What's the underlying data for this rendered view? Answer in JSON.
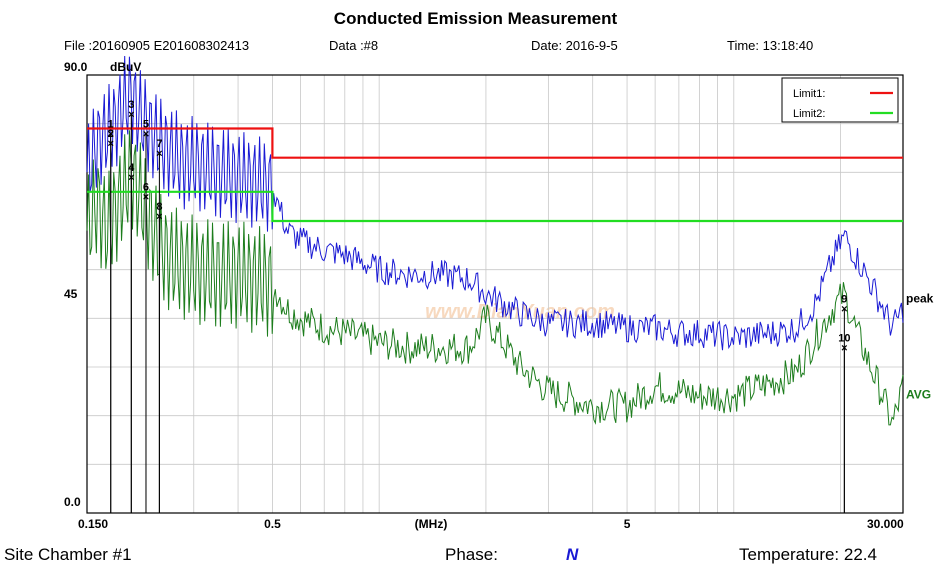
{
  "header": {
    "title": "Conducted Emission Measurement",
    "file": "File :20160905 E201608302413",
    "data_label": "Data :#8",
    "date": "Date: 2016-9-5",
    "time": "Time: 13:18:40"
  },
  "footer": {
    "site": "Site  Chamber #1",
    "phase_label": "Phase:",
    "phase_value": "N",
    "temperature": "Temperature:  22.4"
  },
  "watermark": "www.DianYuan.com",
  "colors": {
    "limit1": "#ee1111",
    "limit2": "#22dd22",
    "peak": "#1a1ad4",
    "avg": "#1d7d1d",
    "grid": "#c8c8c8"
  },
  "chart_data": {
    "type": "line",
    "title": "Conducted Emission Measurement",
    "xlabel": "(MHz)",
    "ylabel": "dBuV",
    "xscale": "log",
    "xlim": [
      0.15,
      30
    ],
    "ylim": [
      0,
      90
    ],
    "x_tick_labels": [
      {
        "value": 0.15,
        "label": "0.150"
      },
      {
        "value": 0.5,
        "label": "0.5"
      },
      {
        "value": 1.4,
        "label": "(MHz)"
      },
      {
        "value": 5,
        "label": "5"
      },
      {
        "value": 30,
        "label": "30.000"
      }
    ],
    "y_tick_labels": [
      {
        "value": 90,
        "label": "90.0"
      },
      {
        "value": 45,
        "label": "45"
      },
      {
        "value": 0,
        "label": "0.0"
      }
    ],
    "legend": {
      "position": "top-right",
      "entries": [
        "Limit1:",
        "Limit2:"
      ]
    },
    "grid": true,
    "limits": [
      {
        "name": "Limit1:",
        "points": [
          [
            0.15,
            79
          ],
          [
            0.5,
            79
          ],
          [
            0.5,
            73
          ],
          [
            30,
            73
          ]
        ]
      },
      {
        "name": "Limit2:",
        "points": [
          [
            0.15,
            66
          ],
          [
            0.5,
            66
          ],
          [
            0.5,
            60
          ],
          [
            30,
            60
          ]
        ]
      }
    ],
    "series": [
      {
        "name": "peak",
        "x": [
          0.15,
          0.16,
          0.17,
          0.18,
          0.19,
          0.2,
          0.21,
          0.22,
          0.24,
          0.26,
          0.28,
          0.3,
          0.35,
          0.4,
          0.45,
          0.5,
          0.55,
          0.6,
          0.7,
          0.8,
          1.0,
          1.2,
          1.5,
          1.8,
          2.0,
          2.5,
          3.0,
          4.0,
          5.0,
          6.0,
          7.0,
          8.0,
          10.0,
          13.0,
          15.0,
          17.0,
          19.0,
          20.5,
          22.0,
          24.0,
          26.0,
          28.0,
          30.0
        ],
        "values": [
          70,
          76,
          78,
          80,
          84,
          86,
          82,
          80,
          76,
          74,
          72,
          72,
          70,
          69,
          68,
          67,
          58,
          56,
          54,
          53,
          50,
          49,
          49,
          48,
          45,
          41,
          39,
          39,
          38,
          38,
          37,
          37,
          36,
          37,
          38,
          43,
          52,
          57,
          53,
          48,
          43,
          38,
          42
        ]
      },
      {
        "name": "AVG",
        "x": [
          0.15,
          0.16,
          0.17,
          0.18,
          0.19,
          0.2,
          0.21,
          0.22,
          0.24,
          0.26,
          0.28,
          0.3,
          0.35,
          0.4,
          0.45,
          0.5,
          0.55,
          0.6,
          0.7,
          0.8,
          1.0,
          1.2,
          1.5,
          1.8,
          2.0,
          2.5,
          3.0,
          4.0,
          5.0,
          6.0,
          7.0,
          8.0,
          10.0,
          13.0,
          15.0,
          17.0,
          19.0,
          20.5,
          22.0,
          24.0,
          26.0,
          28.0,
          30.0
        ],
        "values": [
          58,
          64,
          58,
          62,
          66,
          70,
          66,
          62,
          55,
          52,
          51,
          50,
          49,
          49,
          48,
          47,
          42,
          40,
          38,
          37,
          35,
          34,
          34,
          34,
          40,
          30,
          25,
          22,
          22,
          26,
          25,
          24,
          24,
          27,
          29,
          36,
          42,
          45,
          38,
          31,
          25,
          18,
          26
        ]
      }
    ],
    "markers": [
      {
        "label": "1",
        "x": 0.175,
        "y": 78
      },
      {
        "label": "2",
        "x": 0.175,
        "y": 76
      },
      {
        "label": "3",
        "x": 0.2,
        "y": 82
      },
      {
        "label": "4",
        "x": 0.2,
        "y": 69
      },
      {
        "label": "5",
        "x": 0.22,
        "y": 78
      },
      {
        "label": "6",
        "x": 0.22,
        "y": 65
      },
      {
        "label": "7",
        "x": 0.24,
        "y": 74
      },
      {
        "label": "8",
        "x": 0.24,
        "y": 61
      },
      {
        "label": "9",
        "x": 20.5,
        "y": 42
      },
      {
        "label": "10",
        "x": 20.5,
        "y": 34
      }
    ]
  }
}
